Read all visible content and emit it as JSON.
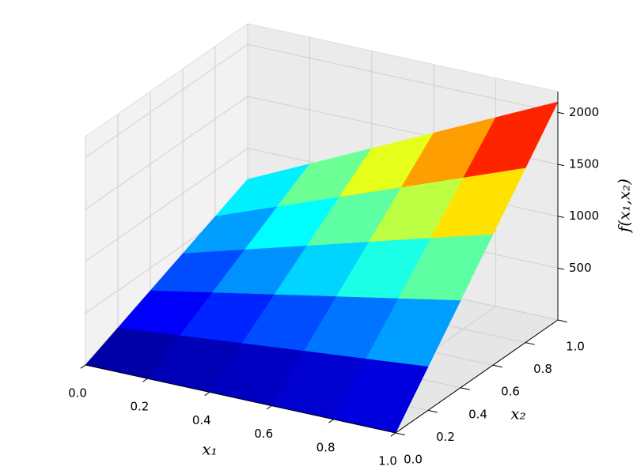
{
  "chart_data": {
    "type": "surface",
    "x_label": "x₁",
    "y_label": "x₂",
    "z_label": "f(x₁,x₂)",
    "x": [
      0,
      0.2,
      0.4,
      0.6,
      0.8,
      1
    ],
    "y": [
      0,
      0.2,
      0.4,
      0.6,
      0.8,
      1
    ],
    "z": [
      [
        0,
        0,
        0,
        0,
        0,
        0
      ],
      [
        140,
        196,
        252,
        308,
        364,
        420
      ],
      [
        280,
        392,
        504,
        616,
        728,
        840
      ],
      [
        420,
        588,
        756,
        924,
        1092,
        1260
      ],
      [
        560,
        784,
        1008,
        1232,
        1456,
        1680
      ],
      [
        700,
        980,
        1260,
        1540,
        1820,
        2100
      ]
    ],
    "colormap": "jet",
    "xlim": [
      0,
      1
    ],
    "ylim": [
      0,
      1
    ],
    "zlim": [
      0,
      2200
    ],
    "xticks": [
      {
        "value": 0,
        "label": "0.0"
      },
      0.2,
      0.4,
      0.6,
      0.8,
      {
        "value": 1,
        "label": "1.0"
      }
    ],
    "yticks": [
      {
        "value": 0,
        "label": "0.0"
      },
      0.2,
      0.4,
      0.6,
      0.8,
      {
        "value": 1,
        "label": "1.0"
      }
    ],
    "zticks": [
      500,
      1000,
      1500,
      2000
    ],
    "grid": true
  }
}
